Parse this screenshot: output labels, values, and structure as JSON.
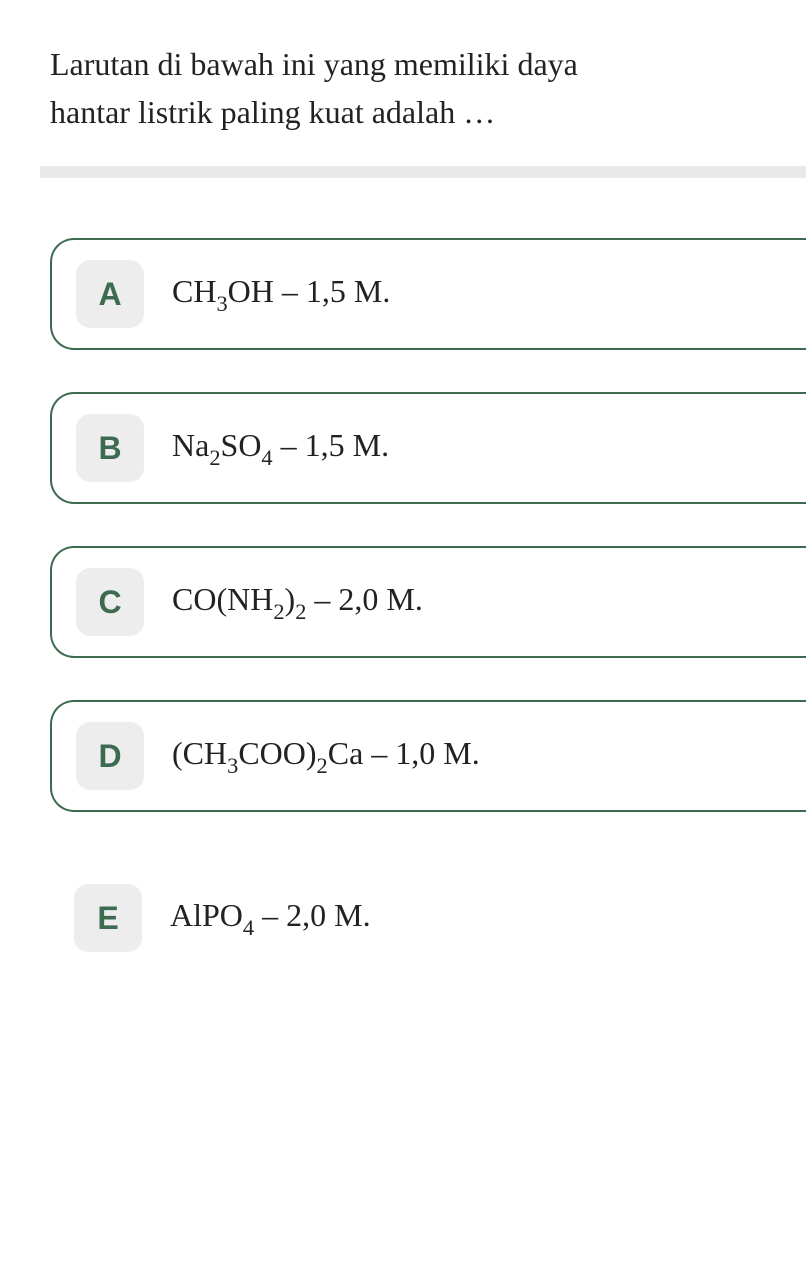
{
  "question": {
    "text_line1": "Larutan di bawah ini yang memiliki daya",
    "text_line2": "hantar listrik paling kuat adalah …"
  },
  "options": [
    {
      "letter": "A",
      "formula_parts": [
        {
          "text": "CH",
          "sub": false
        },
        {
          "text": "3",
          "sub": true
        },
        {
          "text": "OH – 1,5 M.",
          "sub": false
        }
      ]
    },
    {
      "letter": "B",
      "formula_parts": [
        {
          "text": "Na",
          "sub": false
        },
        {
          "text": "2",
          "sub": true
        },
        {
          "text": "SO",
          "sub": false
        },
        {
          "text": "4",
          "sub": true
        },
        {
          "text": " – 1,5 M.",
          "sub": false
        }
      ]
    },
    {
      "letter": "C",
      "formula_parts": [
        {
          "text": "CO(NH",
          "sub": false
        },
        {
          "text": "2",
          "sub": true
        },
        {
          "text": ")",
          "sub": false
        },
        {
          "text": "2",
          "sub": true
        },
        {
          "text": " – 2,0 M.",
          "sub": false
        }
      ]
    },
    {
      "letter": "D",
      "formula_parts": [
        {
          "text": "(CH",
          "sub": false
        },
        {
          "text": "3",
          "sub": true
        },
        {
          "text": "COO)",
          "sub": false
        },
        {
          "text": "2",
          "sub": true
        },
        {
          "text": "Ca – 1,0 M.",
          "sub": false
        }
      ]
    },
    {
      "letter": "E",
      "formula_parts": [
        {
          "text": "AlPO",
          "sub": false
        },
        {
          "text": "4",
          "sub": true
        },
        {
          "text": " – 2,0 M.",
          "sub": false
        }
      ]
    }
  ],
  "colors": {
    "border": "#3d6b50",
    "letter_bg": "#ededed",
    "letter_fg": "#3d6b50",
    "text": "#222222",
    "divider": "#e9e9e9",
    "background": "#ffffff"
  }
}
